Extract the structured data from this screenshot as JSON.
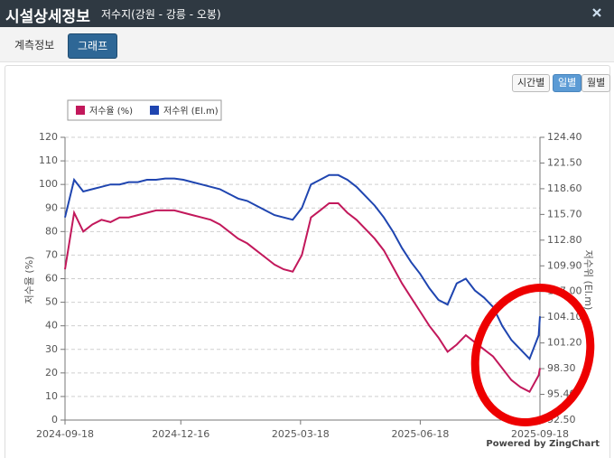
{
  "header": {
    "title": "시설상세정보",
    "subtitle": "저수지(강원 - 강릉 - 오봉)"
  },
  "tabs": [
    "계측정보",
    "그래프"
  ],
  "period_buttons": [
    "시간별",
    "일별",
    "월별"
  ],
  "chart_data": {
    "type": "line",
    "y_axis_label": "저수율 (%)",
    "y2_axis_label": "저수위 (El.m)",
    "credit": "Powered by ZingChart",
    "x": [
      "2024-09-18",
      "2024-09-25",
      "2024-10-02",
      "2024-10-09",
      "2024-10-16",
      "2024-10-23",
      "2024-10-30",
      "2024-11-06",
      "2024-11-13",
      "2024-11-20",
      "2024-11-27",
      "2024-12-04",
      "2024-12-11",
      "2024-12-18",
      "2024-12-25",
      "2025-01-01",
      "2025-01-08",
      "2025-01-15",
      "2025-01-22",
      "2025-01-29",
      "2025-02-05",
      "2025-02-12",
      "2025-02-19",
      "2025-02-26",
      "2025-03-05",
      "2025-03-12",
      "2025-03-19",
      "2025-03-26",
      "2025-04-02",
      "2025-04-09",
      "2025-04-16",
      "2025-04-23",
      "2025-04-30",
      "2025-05-07",
      "2025-05-14",
      "2025-05-21",
      "2025-05-28",
      "2025-06-04",
      "2025-06-11",
      "2025-06-18",
      "2025-06-25",
      "2025-07-02",
      "2025-07-09",
      "2025-07-16",
      "2025-07-23",
      "2025-07-30",
      "2025-08-06",
      "2025-08-13",
      "2025-08-20",
      "2025-08-27",
      "2025-09-03",
      "2025-09-10",
      "2025-09-17",
      "2025-09-18"
    ],
    "xlim": [
      "2024-09-18",
      "2025-09-18"
    ],
    "xticks": [
      "2024-09-18",
      "2024-12-16",
      "2025-03-18",
      "2025-06-18",
      "2025-09-18"
    ],
    "ylim": [
      0,
      120
    ],
    "yticks": [
      0,
      10,
      20,
      30,
      40,
      50,
      60,
      70,
      80,
      90,
      100,
      110,
      120
    ],
    "y2lim": [
      92.5,
      124.4
    ],
    "y2ticks": [
      {
        "value": 92.5,
        "label": "92.50"
      },
      {
        "value": 95.4,
        "label": "95.40"
      },
      {
        "value": 98.3,
        "label": "98.30"
      },
      {
        "value": 101.2,
        "label": "101.20"
      },
      {
        "value": 104.1,
        "label": "104.10"
      },
      {
        "value": 107,
        "label": "107.00"
      },
      {
        "value": 109.9,
        "label": "109.90"
      },
      {
        "value": 112.8,
        "label": "112.80"
      },
      {
        "value": 115.7,
        "label": "115.70"
      },
      {
        "value": 118.6,
        "label": "118.60"
      },
      {
        "value": 121.5,
        "label": "121.50"
      },
      {
        "value": 124.4,
        "label": "124.40"
      }
    ],
    "grid": true,
    "legend_position": "top-left",
    "series": [
      {
        "name": "저수율 (%)",
        "color": "#c2185b",
        "values": [
          64,
          88,
          80,
          83,
          85,
          84,
          86,
          86,
          87,
          88,
          89,
          89,
          89,
          88,
          87,
          86,
          85,
          83,
          80,
          77,
          75,
          72,
          69,
          66,
          64,
          63,
          70,
          86,
          89,
          92,
          92,
          88,
          85,
          81,
          77,
          72,
          65,
          58,
          52,
          46,
          40,
          35,
          29,
          32,
          36,
          33,
          30,
          27,
          22,
          17,
          14,
          12,
          19,
          22
        ]
      },
      {
        "name": "저수위 (El.m)",
        "color": "#1f45b0",
        "axis": "y2",
        "values": [
          115.36,
          119.61,
          118.28,
          118.55,
          118.81,
          119.08,
          119.08,
          119.35,
          119.35,
          119.61,
          119.61,
          119.75,
          119.75,
          119.61,
          119.35,
          119.08,
          118.81,
          118.55,
          118.02,
          117.49,
          117.22,
          116.69,
          116.16,
          115.62,
          115.36,
          115.09,
          116.42,
          119.08,
          119.61,
          120.14,
          120.14,
          119.61,
          118.81,
          117.75,
          116.69,
          115.36,
          113.76,
          111.9,
          110.31,
          108.98,
          107.38,
          106.06,
          105.52,
          107.92,
          108.45,
          107.12,
          106.32,
          105.26,
          103.13,
          101.54,
          100.47,
          99.41,
          102.07,
          104.2
        ]
      }
    ]
  }
}
